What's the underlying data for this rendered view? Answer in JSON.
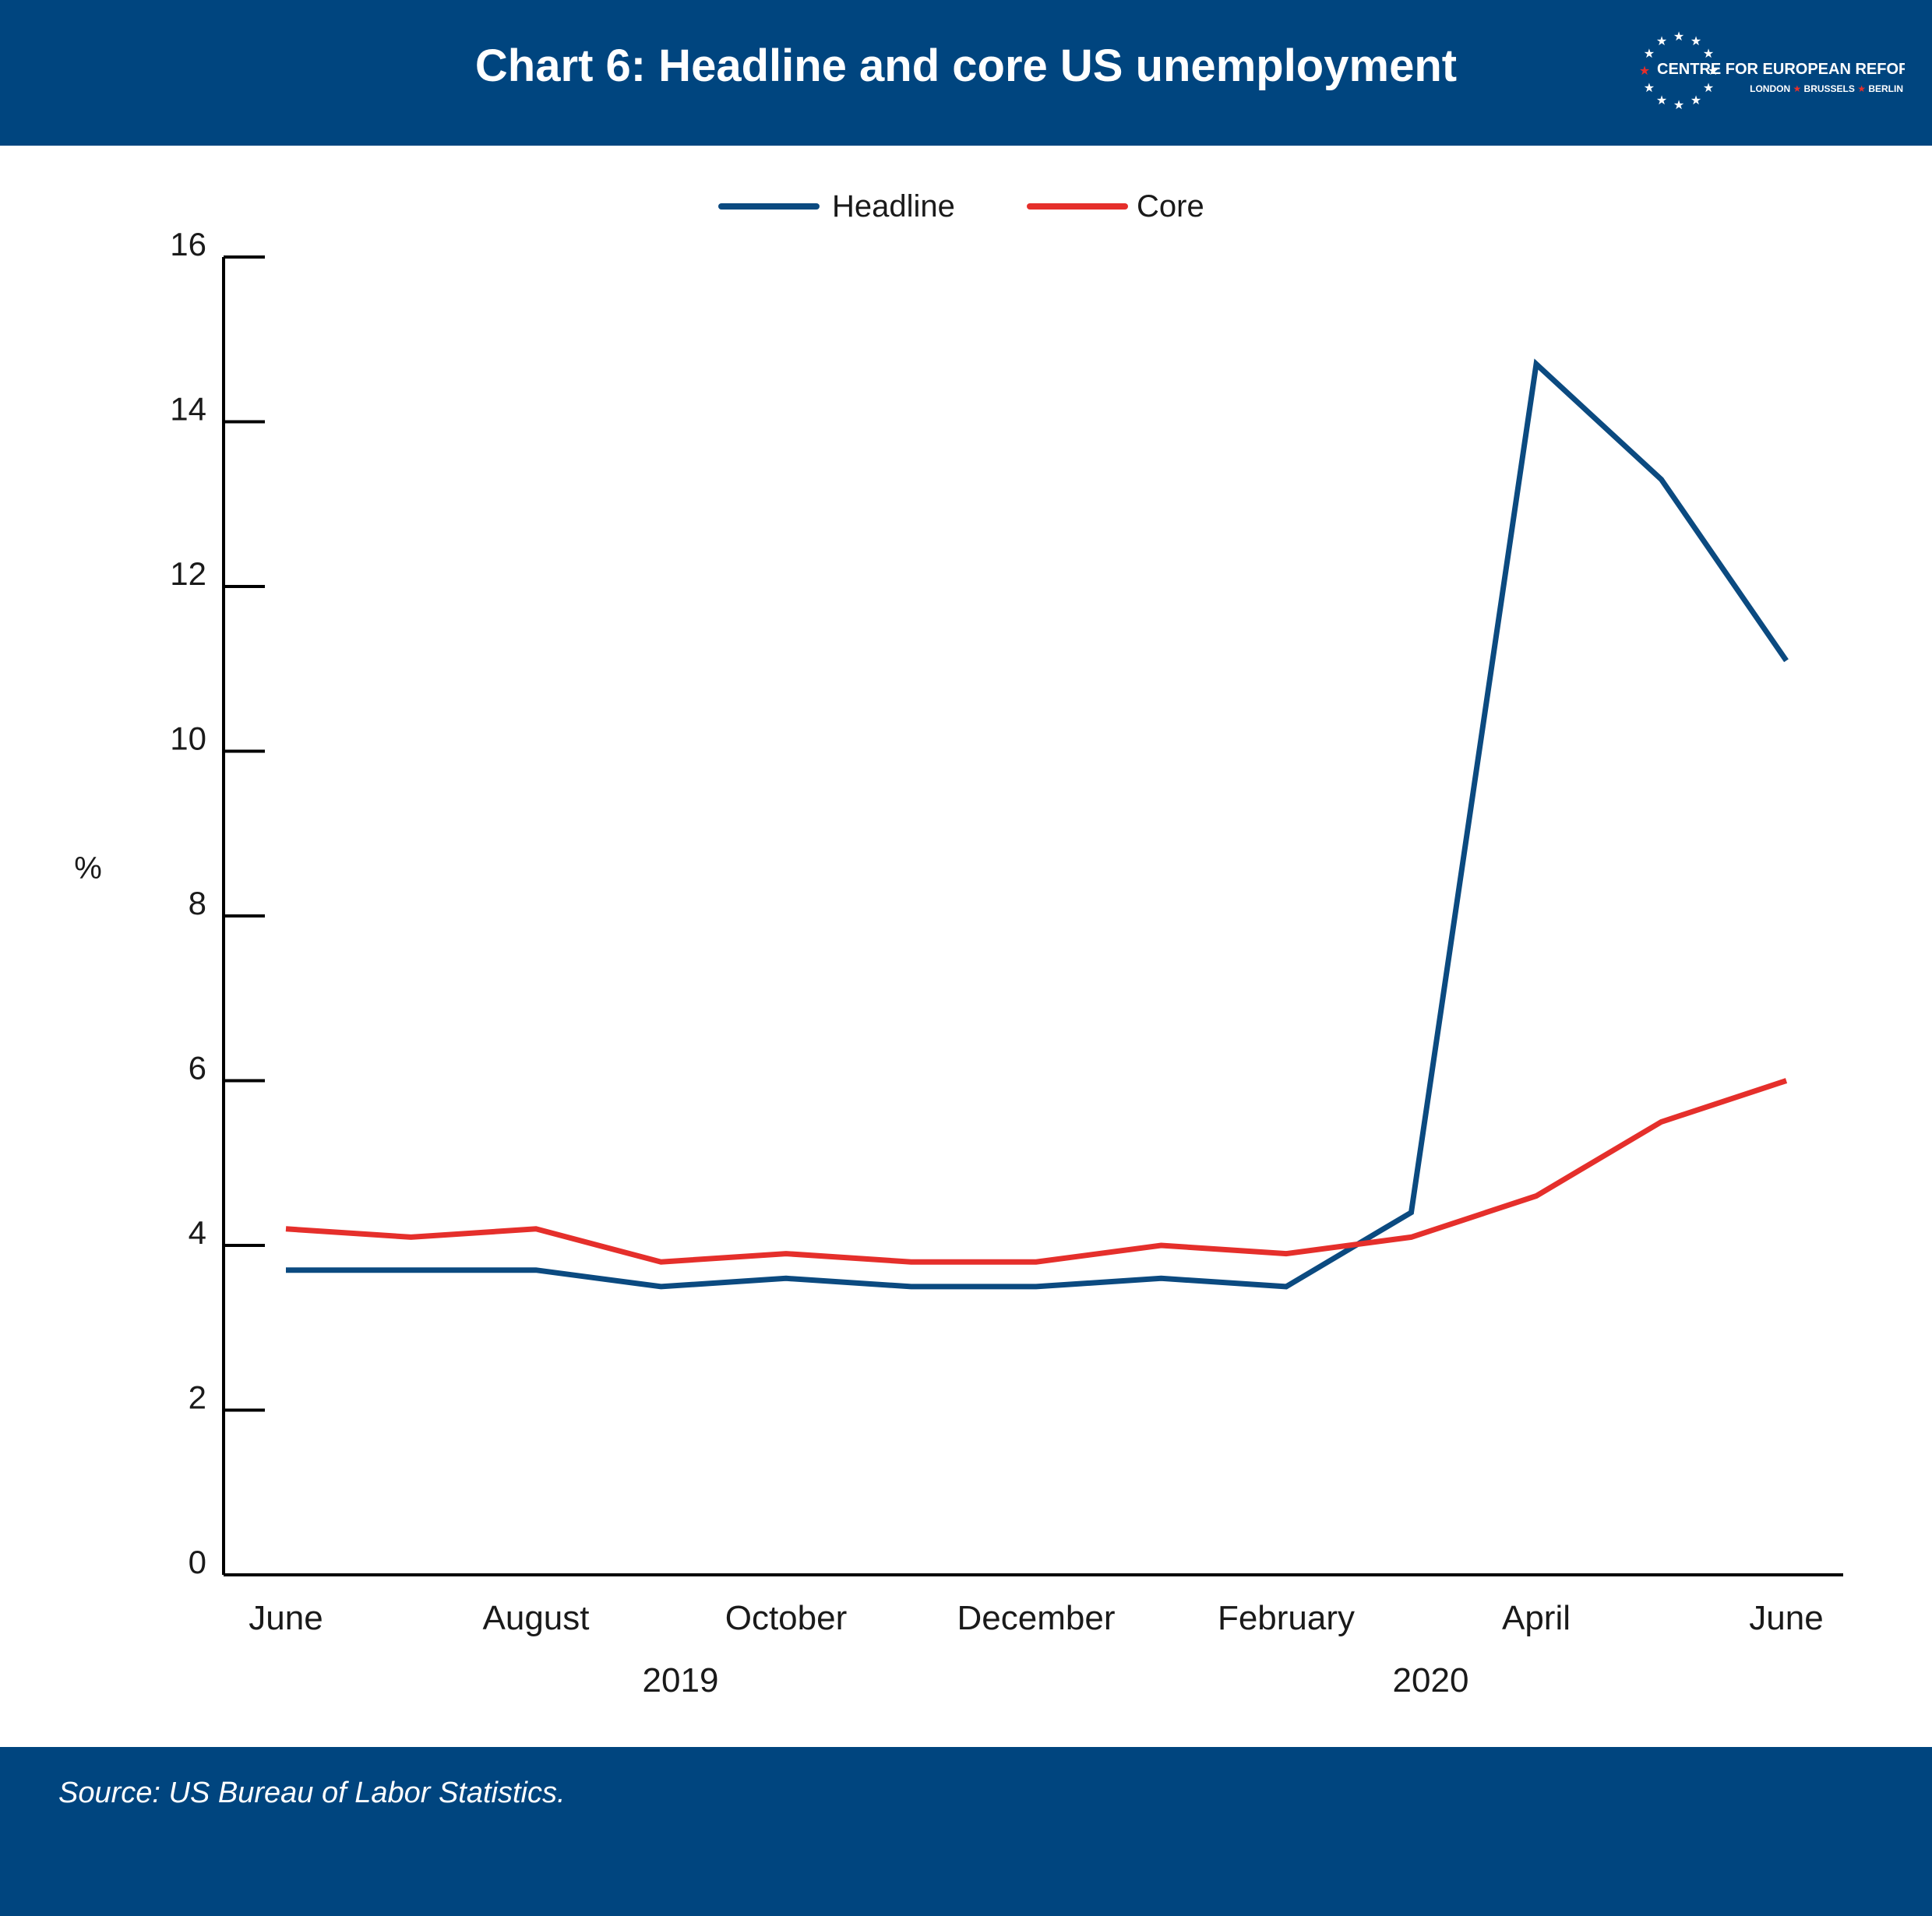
{
  "title": "Chart 6: Headline and core US unemployment",
  "logo": {
    "name": "CENTRE FOR EUROPEAN REFORM",
    "cities": [
      "LONDON",
      "BRUSSELS",
      "BERLIN"
    ]
  },
  "source": "Source: US Bureau of Labor Statistics.",
  "colors": {
    "band": "#00457f",
    "headline": "#0b4a80",
    "core": "#e52f2b",
    "axis": "#000000"
  },
  "chart_data": {
    "type": "line",
    "ylabel": "%",
    "ylim": [
      0,
      16
    ],
    "yticks": [
      0,
      2,
      4,
      6,
      8,
      10,
      12,
      14,
      16
    ],
    "months": [
      "Jun 2019",
      "Jul 2019",
      "Aug 2019",
      "Sep 2019",
      "Oct 2019",
      "Nov 2019",
      "Dec 2019",
      "Jan 2020",
      "Feb 2020",
      "Mar 2020",
      "Apr 2020",
      "May 2020",
      "Jun 2020"
    ],
    "month_labels": [
      {
        "month": "Jun 2019",
        "label": "June"
      },
      {
        "month": "Aug 2019",
        "label": "August"
      },
      {
        "month": "Oct 2019",
        "label": "October"
      },
      {
        "month": "Dec 2019",
        "label": "December"
      },
      {
        "month": "Feb 2020",
        "label": "February"
      },
      {
        "month": "Apr 2020",
        "label": "April"
      },
      {
        "month": "Jun 2020",
        "label": "June"
      }
    ],
    "year_labels": [
      {
        "month": "Sep 2019",
        "label": "2019"
      },
      {
        "month": "Mar 2020",
        "label": "2020"
      }
    ],
    "legend_position": "top-center",
    "grid": false,
    "series": [
      {
        "name": "Headline",
        "color": "#0b4a80",
        "values": [
          3.7,
          3.7,
          3.7,
          3.5,
          3.6,
          3.5,
          3.5,
          3.6,
          3.5,
          4.4,
          14.7,
          13.3,
          11.1
        ]
      },
      {
        "name": "Core",
        "color": "#e52f2b",
        "values": [
          4.2,
          4.1,
          4.2,
          3.8,
          3.9,
          3.8,
          3.8,
          4.0,
          3.9,
          4.1,
          4.6,
          5.5,
          6.0
        ]
      }
    ]
  }
}
